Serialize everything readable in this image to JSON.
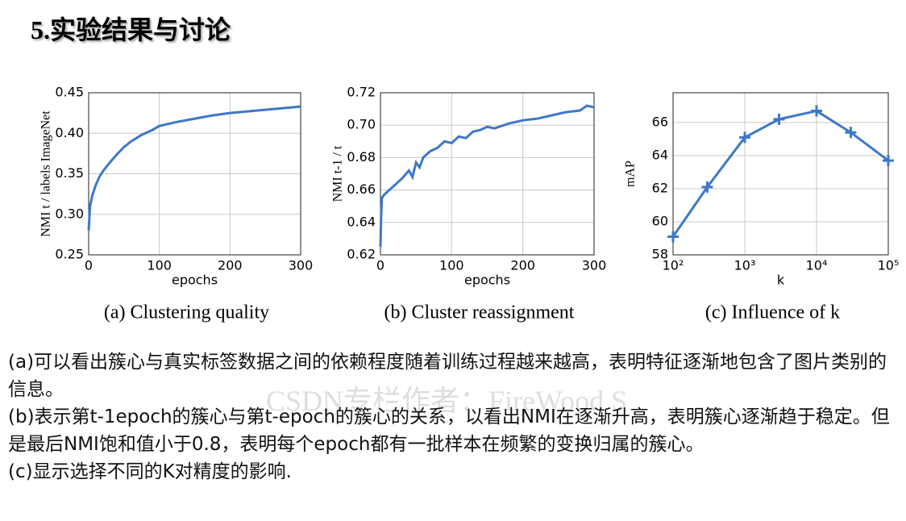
{
  "title": "5.实验结果与讨论",
  "chart_data": [
    {
      "type": "line",
      "caption": "(a) Clustering quality",
      "x_label": "epochs",
      "y_label": "NMI t / labels ImageNet",
      "x": [
        0,
        2,
        5,
        10,
        15,
        20,
        30,
        40,
        50,
        60,
        75,
        90,
        100,
        125,
        150,
        175,
        200,
        225,
        250,
        275,
        300
      ],
      "series": [
        {
          "color": "#3d78c8",
          "values": [
            0.28,
            0.31,
            0.323,
            0.336,
            0.346,
            0.353,
            0.364,
            0.374,
            0.383,
            0.39,
            0.398,
            0.404,
            0.409,
            0.414,
            0.418,
            0.422,
            0.425,
            0.427,
            0.429,
            0.431,
            0.433
          ]
        }
      ],
      "xlim": [
        0,
        300
      ],
      "xticks": [
        0,
        100,
        200,
        300
      ],
      "ylim": [
        0.25,
        0.45
      ],
      "yticks": [
        0.25,
        {
          "value": 0.3,
          "label": "0.30"
        },
        0.35,
        {
          "value": 0.4,
          "label": "0.40"
        },
        0.45
      ],
      "grid": true,
      "log_x": false,
      "marker": "none"
    },
    {
      "type": "line",
      "caption": "(b) Cluster reassignment",
      "x_label": "epochs",
      "y_label": "NMI t-1 / t",
      "x": [
        0,
        1,
        2,
        5,
        10,
        20,
        30,
        40,
        45,
        50,
        55,
        60,
        70,
        80,
        90,
        100,
        110,
        120,
        130,
        140,
        150,
        160,
        180,
        200,
        220,
        240,
        260,
        280,
        290,
        300
      ],
      "series": [
        {
          "color": "#3d78c8",
          "values": [
            0.625,
            0.645,
            0.655,
            0.657,
            0.659,
            0.663,
            0.667,
            0.672,
            0.668,
            0.677,
            0.674,
            0.68,
            0.684,
            0.686,
            0.69,
            0.689,
            0.693,
            0.692,
            0.696,
            0.697,
            0.699,
            0.698,
            0.701,
            0.703,
            0.704,
            0.706,
            0.708,
            0.709,
            0.712,
            0.711
          ]
        }
      ],
      "xlim": [
        0,
        300
      ],
      "xticks": [
        0,
        100,
        200,
        300
      ],
      "ylim": [
        0.62,
        0.72
      ],
      "yticks": [
        0.62,
        0.64,
        0.66,
        0.68,
        {
          "value": 0.7,
          "label": "0.70"
        },
        0.72
      ],
      "grid": true,
      "log_x": false,
      "marker": "none"
    },
    {
      "type": "line",
      "caption": "(c) Influence of k",
      "x_label": "k",
      "y_label": "mAP",
      "x": [
        100,
        300,
        1000,
        3000,
        10000,
        30000,
        100000
      ],
      "series": [
        {
          "color": "#3d78c8",
          "values": [
            59.1,
            62.1,
            65.1,
            66.2,
            66.7,
            65.4,
            63.7
          ]
        }
      ],
      "xlim": [
        100,
        100000
      ],
      "xticks": [
        {
          "value": 100,
          "label": "10²"
        },
        {
          "value": 1000,
          "label": "10³"
        },
        {
          "value": 10000,
          "label": "10⁴"
        },
        {
          "value": 100000,
          "label": "10⁵"
        }
      ],
      "ylim": [
        58,
        67.8
      ],
      "yticks": [
        58,
        60,
        62,
        64,
        66
      ],
      "grid": true,
      "log_x": true,
      "marker": "plus"
    }
  ],
  "paragraphs": [
    "(a)可以看出簇心与真实标签数据之间的依赖程度随着训练过程越来越高，表明特征逐渐地包含了图片类别的信息。",
    "(b)表示第t-1epoch的簇心与第t-epoch的簇心的关系，以看出NMI在逐渐升高，表明簇心逐渐趋于稳定。但是最后NMI饱和值小于0.8，表明每个epoch都有一批样本在频繁的变换归属的簇心。",
    "(c)显示选择不同的K对精度的影响."
  ],
  "watermark": "CSDN专栏作者：FireWood S"
}
